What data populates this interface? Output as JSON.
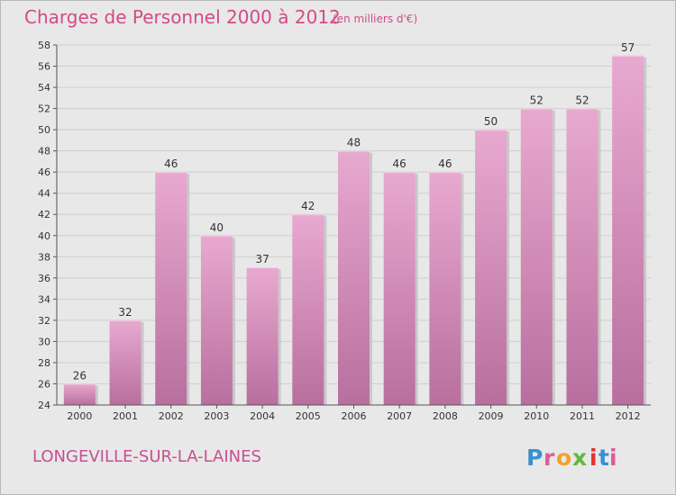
{
  "title": "Charges de Personnel 2000 à 2012",
  "subtitle": "(en milliers d'€)",
  "commune": "LONGEVILLE-SUR-LA-LAINES",
  "logo_text": "Proxiti",
  "colors": {
    "bar_top": "#e8a9d0",
    "bar_bottom": "#b86f9e",
    "title": "#d24b87",
    "commune": "#c84f92",
    "background": "#e8e8e8"
  },
  "chart_data": {
    "type": "bar",
    "title": "Charges de Personnel 2000 à 2012",
    "subtitle": "(en milliers d'€)",
    "categories": [
      "2000",
      "2001",
      "2002",
      "2003",
      "2004",
      "2005",
      "2006",
      "2007",
      "2008",
      "2009",
      "2010",
      "2011",
      "2012"
    ],
    "values": [
      26,
      32,
      46,
      40,
      37,
      42,
      48,
      46,
      46,
      50,
      52,
      52,
      57
    ],
    "data_labels": [
      "26",
      "32",
      "46",
      "40",
      "37",
      "42",
      "48",
      "46",
      "46",
      "50",
      "52",
      "52",
      "57"
    ],
    "ylim": [
      24,
      58
    ],
    "yticks": [
      24,
      26,
      28,
      30,
      32,
      34,
      36,
      38,
      40,
      42,
      44,
      46,
      48,
      50,
      52,
      54,
      56,
      58
    ],
    "grid": true,
    "legend": "none"
  }
}
